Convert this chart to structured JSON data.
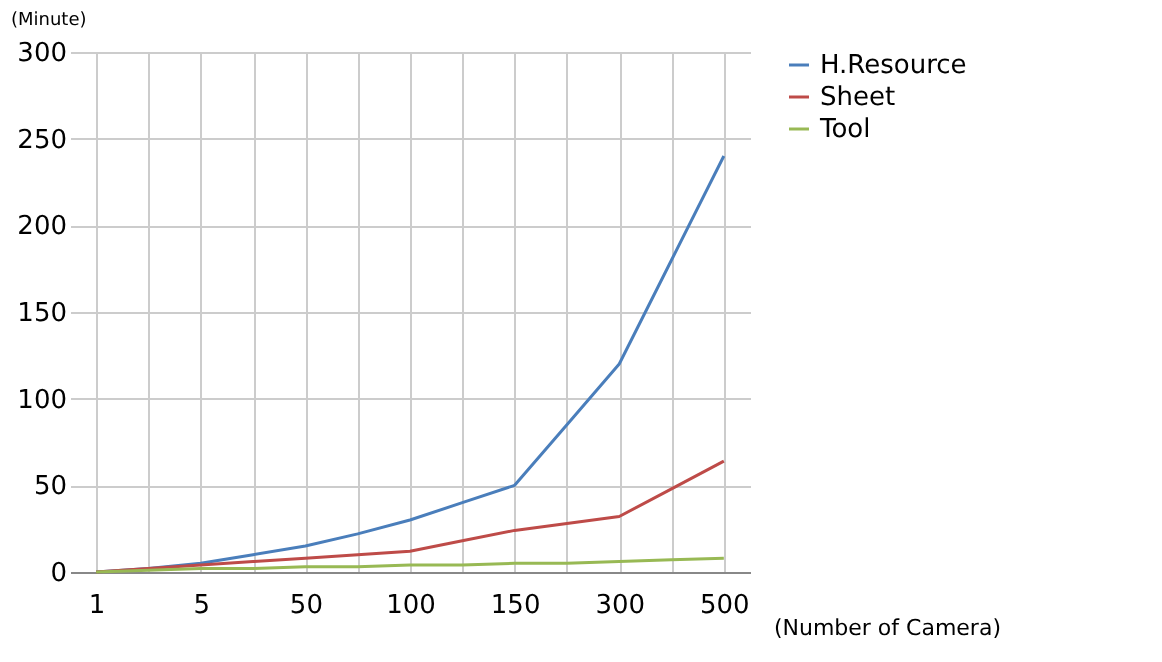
{
  "chart_data": {
    "type": "line",
    "ylabel": "(Minute)",
    "xlabel": "(Number of Camera)",
    "categories": [
      "1",
      null,
      "5",
      null,
      "50",
      null,
      "100",
      null,
      "150",
      null,
      "300",
      null,
      "500"
    ],
    "series": [
      {
        "name": "H.Resource",
        "color": "#4a7ebb",
        "values": [
          0,
          2,
          5,
          10,
          15,
          22,
          30,
          40,
          50,
          85,
          120,
          180,
          240
        ]
      },
      {
        "name": "Sheet",
        "color": "#be4b48",
        "values": [
          0,
          2,
          4,
          6,
          8,
          10,
          12,
          18,
          24,
          28,
          32,
          48,
          64
        ]
      },
      {
        "name": "Tool",
        "color": "#98b954",
        "values": [
          0,
          1,
          2,
          2,
          3,
          3,
          4,
          4,
          5,
          5,
          6,
          7,
          8
        ]
      }
    ],
    "ylim": [
      0,
      300
    ],
    "yticks": [
      0,
      50,
      100,
      150,
      200,
      250,
      300
    ],
    "grid": true,
    "legend": "right",
    "marker": "none",
    "line_style": "solid"
  }
}
